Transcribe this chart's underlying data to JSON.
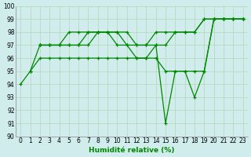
{
  "lines": [
    {
      "x": [
        0,
        1,
        2,
        3,
        4,
        5,
        6,
        7,
        8,
        9,
        10,
        11,
        12,
        13,
        14,
        15,
        16,
        17,
        18,
        19,
        20,
        21,
        22,
        23
      ],
      "y": [
        94,
        95,
        97,
        97,
        97,
        97,
        97,
        98,
        98,
        98,
        98,
        97,
        96,
        96,
        97,
        91,
        95,
        95,
        93,
        95,
        99,
        99,
        99,
        99
      ]
    },
    {
      "x": [
        2,
        3,
        4,
        5,
        6,
        7,
        8,
        9,
        10,
        11,
        12,
        13,
        14,
        15,
        16,
        17,
        18,
        19,
        20,
        21,
        22,
        23
      ],
      "y": [
        97,
        97,
        97,
        98,
        98,
        98,
        98,
        98,
        98,
        98,
        97,
        97,
        98,
        98,
        98,
        98,
        98,
        99,
        99,
        99,
        99,
        99
      ]
    },
    {
      "x": [
        2,
        3,
        4,
        5,
        6,
        7,
        8,
        9,
        10,
        11,
        12,
        13,
        14,
        15,
        16,
        17,
        18,
        19,
        20,
        21,
        22,
        23
      ],
      "y": [
        97,
        97,
        97,
        97,
        97,
        97,
        98,
        98,
        97,
        97,
        97,
        97,
        97,
        97,
        98,
        98,
        98,
        99,
        99,
        99,
        99,
        99
      ]
    },
    {
      "x": [
        1,
        2,
        3,
        4,
        5,
        6,
        7,
        8,
        9,
        10,
        11,
        12,
        13,
        14,
        15,
        16,
        17,
        18,
        19,
        20,
        21,
        22,
        23
      ],
      "y": [
        95,
        96,
        96,
        96,
        96,
        96,
        96,
        96,
        96,
        96,
        96,
        96,
        96,
        96,
        95,
        95,
        95,
        95,
        95,
        99,
        99,
        99,
        99
      ]
    }
  ],
  "xlabel": "Humidité relative (%)",
  "xlim_min": -0.5,
  "xlim_max": 23.5,
  "ylim_min": 90,
  "ylim_max": 100,
  "yticks": [
    90,
    91,
    92,
    93,
    94,
    95,
    96,
    97,
    98,
    99,
    100
  ],
  "xticks": [
    0,
    1,
    2,
    3,
    4,
    5,
    6,
    7,
    8,
    9,
    10,
    11,
    12,
    13,
    14,
    15,
    16,
    17,
    18,
    19,
    20,
    21,
    22,
    23
  ],
  "grid_color": "#b0d8b0",
  "bg_color": "#d0ecec",
  "line_color": "#008800",
  "xlabel_fontsize": 6.5,
  "tick_fontsize": 5.5,
  "linewidth": 0.9,
  "markersize": 2.8
}
